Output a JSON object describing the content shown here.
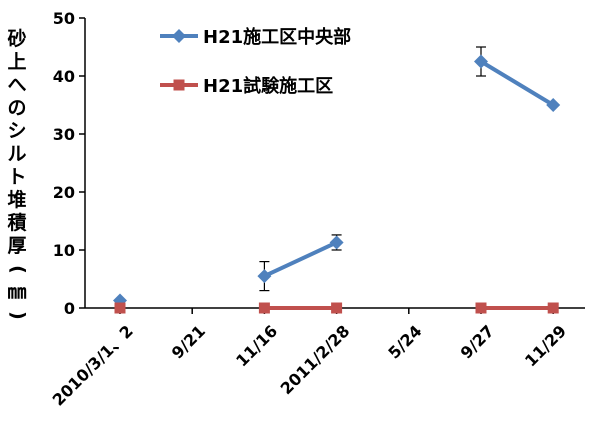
{
  "chart_data": {
    "type": "line",
    "title": "",
    "xlabel": "",
    "ylabel": "砂上へのシルト堆積厚(㎜)",
    "ylim": [
      0,
      50
    ],
    "yticks": [
      "0",
      "10",
      "20",
      "30",
      "40",
      "50"
    ],
    "categories": [
      "2010/3/1、2",
      "9/21",
      "11/16",
      "2011/2/28",
      "5/24",
      "9/27",
      "11/29"
    ],
    "legend_position": "top-center",
    "grid": false,
    "series": [
      {
        "name": "H21施工区中央部",
        "color": "#4f81bd",
        "marker": "diamond",
        "values": [
          1.3,
          null,
          5.5,
          11.3,
          null,
          42.5,
          35.0
        ],
        "error": [
          null,
          null,
          2.5,
          1.3,
          null,
          2.5,
          null
        ]
      },
      {
        "name": "H21試験施工区",
        "color": "#c0504d",
        "marker": "square",
        "values": [
          0,
          null,
          0,
          0,
          null,
          0,
          0
        ],
        "error": [
          null,
          null,
          null,
          null,
          null,
          null,
          null
        ]
      }
    ]
  }
}
